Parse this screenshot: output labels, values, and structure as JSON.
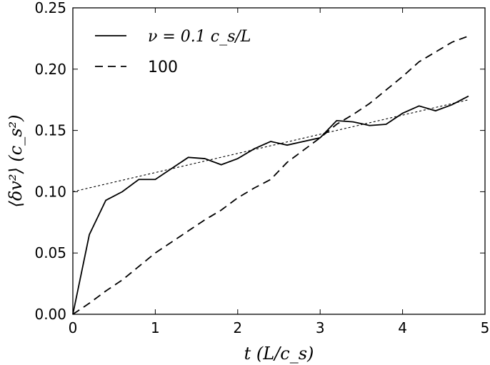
{
  "chart_data": {
    "type": "line",
    "xlabel": "t (L/c_s)",
    "ylabel": "⟨δv²⟩ (c_s²)",
    "xlim": [
      0,
      5
    ],
    "ylim": [
      0,
      0.25
    ],
    "xticks": [
      "0",
      "1",
      "2",
      "3",
      "4",
      "5"
    ],
    "yticks": [
      "0.00",
      "0.05",
      "0.10",
      "0.15",
      "0.20",
      "0.25"
    ],
    "legend_position": "top-left",
    "series": [
      {
        "name": "ν = 0.1 c_s/L",
        "style": "solid",
        "x": [
          0,
          0.2,
          0.4,
          0.6,
          0.8,
          1.0,
          1.2,
          1.4,
          1.6,
          1.8,
          2.0,
          2.2,
          2.4,
          2.6,
          2.8,
          3.0,
          3.2,
          3.4,
          3.6,
          3.8,
          4.0,
          4.2,
          4.4,
          4.6,
          4.8
        ],
        "y": [
          0.0,
          0.065,
          0.093,
          0.1,
          0.11,
          0.11,
          0.119,
          0.128,
          0.127,
          0.122,
          0.127,
          0.135,
          0.141,
          0.138,
          0.141,
          0.144,
          0.158,
          0.157,
          0.154,
          0.155,
          0.164,
          0.17,
          0.166,
          0.171,
          0.178
        ]
      },
      {
        "name": "100",
        "style": "dashed",
        "x": [
          0,
          0.2,
          0.4,
          0.6,
          0.8,
          1.0,
          1.2,
          1.4,
          1.6,
          1.8,
          2.0,
          2.2,
          2.4,
          2.6,
          2.8,
          3.0,
          3.2,
          3.4,
          3.6,
          3.8,
          4.0,
          4.2,
          4.4,
          4.6,
          4.8
        ],
        "y": [
          0.0,
          0.009,
          0.019,
          0.028,
          0.039,
          0.05,
          0.059,
          0.068,
          0.077,
          0.085,
          0.095,
          0.103,
          0.11,
          0.124,
          0.134,
          0.144,
          0.155,
          0.163,
          0.172,
          0.183,
          0.194,
          0.206,
          0.214,
          0.222,
          0.227
        ]
      },
      {
        "name": "",
        "style": "dotted",
        "x": [
          0,
          4.8
        ],
        "y": [
          0.1,
          0.175
        ]
      }
    ]
  }
}
